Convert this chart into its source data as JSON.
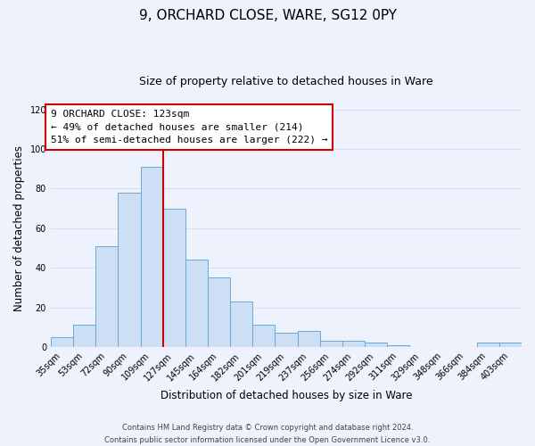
{
  "title": "9, ORCHARD CLOSE, WARE, SG12 0PY",
  "subtitle": "Size of property relative to detached houses in Ware",
  "xlabel": "Distribution of detached houses by size in Ware",
  "ylabel": "Number of detached properties",
  "bar_labels": [
    "35sqm",
    "53sqm",
    "72sqm",
    "90sqm",
    "109sqm",
    "127sqm",
    "145sqm",
    "164sqm",
    "182sqm",
    "201sqm",
    "219sqm",
    "237sqm",
    "256sqm",
    "274sqm",
    "292sqm",
    "311sqm",
    "329sqm",
    "348sqm",
    "366sqm",
    "384sqm",
    "403sqm"
  ],
  "bar_values": [
    5,
    11,
    51,
    78,
    91,
    70,
    44,
    35,
    23,
    11,
    7,
    8,
    3,
    3,
    2,
    1,
    0,
    0,
    0,
    2,
    2
  ],
  "bar_color": "#ccdff5",
  "bar_edge_color": "#6aaad4",
  "vline_color": "#cc0000",
  "vline_x": 4.5,
  "annotation_title": "9 ORCHARD CLOSE: 123sqm",
  "annotation_line1": "← 49% of detached houses are smaller (214)",
  "annotation_line2": "51% of semi-detached houses are larger (222) →",
  "annotation_box_color": "#ffffff",
  "annotation_box_edge_color": "#cc0000",
  "ylim": [
    0,
    120
  ],
  "yticks": [
    0,
    20,
    40,
    60,
    80,
    100,
    120
  ],
  "footer1": "Contains HM Land Registry data © Crown copyright and database right 2024.",
  "footer2": "Contains public sector information licensed under the Open Government Licence v3.0.",
  "background_color": "#eef2fc",
  "grid_color": "#d8dff0",
  "title_fontsize": 11,
  "subtitle_fontsize": 9,
  "axis_label_fontsize": 8.5,
  "tick_fontsize": 7,
  "annotation_fontsize": 8,
  "footer_fontsize": 6
}
